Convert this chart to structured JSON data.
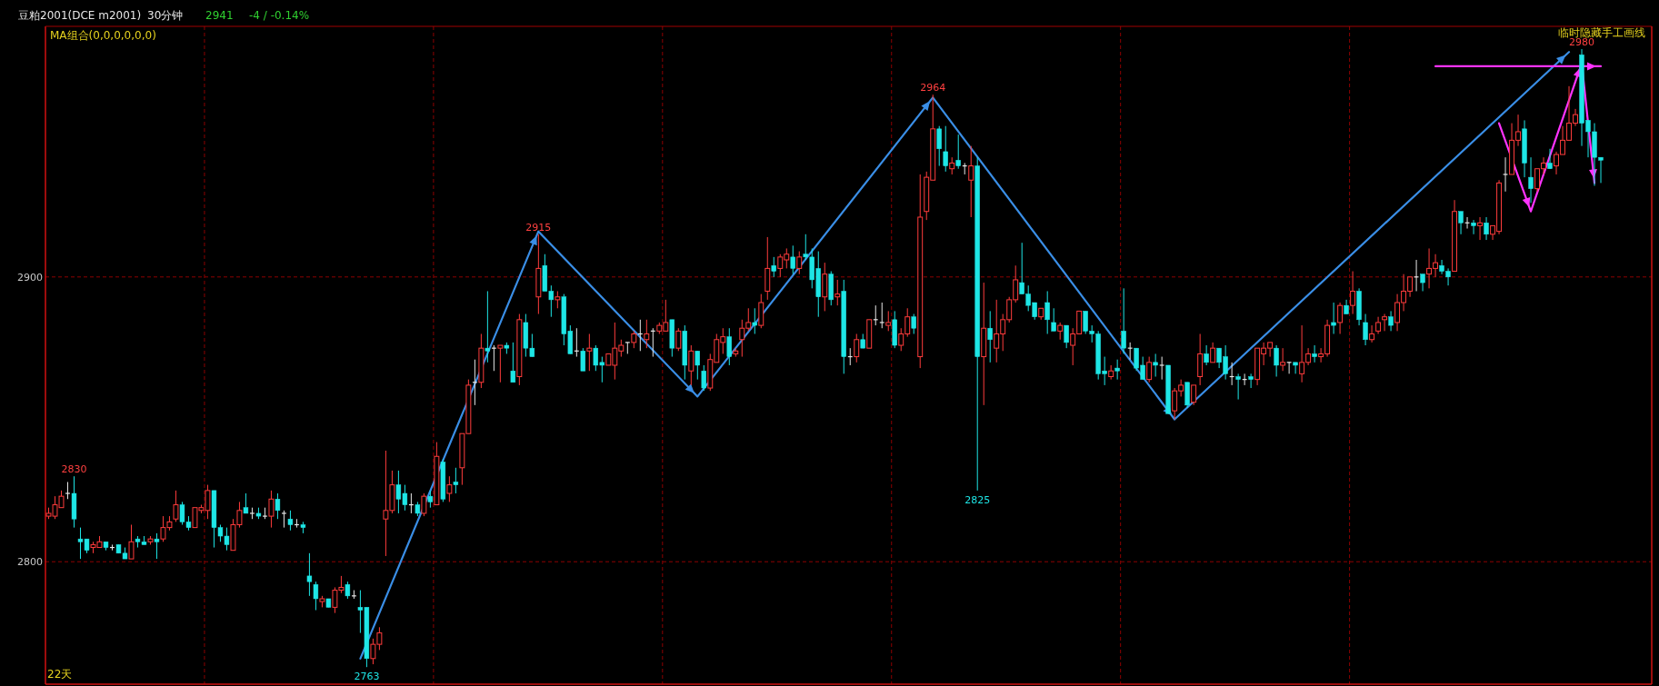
{
  "chart_data": {
    "type": "candlestick",
    "title": "豆粕2001(DCE m2001)",
    "subtitle": "30分钟",
    "annotations": [
      "2941",
      "-4 / -0.14%",
      "MA组合(0,0,0,0,0,0)",
      "临时隐藏手工画线",
      "22天",
      {
        "text": "2830",
        "y": 2830
      },
      {
        "text": "2763",
        "y": 2763
      },
      {
        "text": "2915",
        "y": 2915
      },
      {
        "text": "2964",
        "y": 2964
      },
      {
        "text": "2825",
        "y": 2825
      },
      {
        "text": "2980",
        "y": 2980
      }
    ],
    "categories": [
      null,
      null,
      null,
      null,
      null,
      null,
      null,
      null,
      null,
      null,
      null,
      null,
      null,
      null,
      null,
      null,
      null,
      null,
      null,
      null,
      null,
      null,
      null,
      null,
      null,
      null,
      null,
      null,
      null,
      null,
      null,
      null,
      null,
      null,
      null,
      null,
      null,
      null,
      null,
      null,
      null,
      null,
      null,
      null,
      null,
      null,
      null,
      null,
      null,
      null,
      null,
      null,
      null,
      null,
      null,
      null,
      null,
      null,
      null,
      null,
      null,
      null,
      null,
      null,
      null,
      null,
      null,
      null,
      null,
      null,
      null,
      null,
      null,
      null,
      null,
      null,
      null,
      null,
      null,
      null,
      null,
      null,
      null,
      null,
      null,
      null,
      null,
      null,
      null,
      null,
      null,
      null,
      null,
      null,
      null,
      null,
      null,
      null,
      null,
      null,
      null,
      null,
      null,
      null,
      null,
      null,
      null,
      null,
      null,
      null,
      null,
      null,
      null,
      null,
      null,
      null,
      null,
      null,
      null,
      null,
      null,
      null,
      null,
      null,
      null,
      null,
      null,
      null,
      null,
      null,
      null,
      null,
      null,
      null,
      null,
      null,
      null,
      null,
      null,
      null,
      null,
      null,
      null,
      null,
      null,
      null,
      null,
      null,
      null,
      null,
      null,
      null,
      null,
      null,
      null,
      null,
      null,
      null,
      null,
      null,
      null,
      null,
      null,
      null,
      null,
      null,
      null,
      null,
      null,
      null,
      null,
      null,
      null,
      null,
      null,
      null,
      null,
      null,
      null,
      null,
      null,
      null,
      null,
      null,
      null,
      null,
      null,
      null,
      null,
      null,
      null,
      null,
      null,
      null,
      null,
      null,
      null,
      null,
      null,
      null,
      null,
      null,
      null,
      null,
      null,
      null,
      null,
      null,
      null,
      null,
      null,
      null,
      null,
      null,
      null,
      null,
      null,
      null,
      null,
      null,
      null,
      null,
      null,
      null,
      null,
      null,
      null,
      null,
      null,
      null,
      null,
      null,
      null,
      null,
      null,
      null,
      null,
      null,
      null,
      null,
      null,
      null,
      null,
      null,
      null
    ],
    "ohlc": [
      [
        2816,
        2819,
        2815,
        2817
      ],
      [
        2816,
        2823,
        2815,
        2820
      ],
      [
        2819,
        2825,
        2819,
        2823
      ],
      [
        2824,
        2828,
        2822,
        2824
      ],
      [
        2824,
        2830,
        2812,
        2815
      ],
      [
        2808,
        2812,
        2801,
        2807
      ],
      [
        2808,
        2808,
        2803,
        2804
      ],
      [
        2805,
        2807,
        2803,
        2806
      ],
      [
        2805,
        2809,
        2805,
        2807
      ],
      [
        2807,
        2807,
        2804,
        2805
      ],
      [
        2805,
        2806,
        2804,
        2805
      ],
      [
        2806,
        2806,
        2803,
        2803
      ],
      [
        2803,
        2805,
        2801,
        2801
      ],
      [
        2801,
        2813,
        2801,
        2807
      ],
      [
        2808,
        2809,
        2805,
        2807
      ],
      [
        2807,
        2809,
        2806,
        2806
      ],
      [
        2807,
        2809,
        2806,
        2808
      ],
      [
        2808,
        2810,
        2801,
        2807
      ],
      [
        2808,
        2816,
        2807,
        2812
      ],
      [
        2812,
        2816,
        2811,
        2814
      ],
      [
        2815,
        2825,
        2814,
        2820
      ],
      [
        2820,
        2821,
        2813,
        2814
      ],
      [
        2814,
        2816,
        2811,
        2812
      ],
      [
        2812,
        2819,
        2812,
        2819
      ],
      [
        2818,
        2820,
        2817,
        2819
      ],
      [
        2818,
        2827,
        2815,
        2825
      ],
      [
        2825,
        2825,
        2805,
        2812
      ],
      [
        2812,
        2813,
        2807,
        2809
      ],
      [
        2809,
        2812,
        2804,
        2806
      ],
      [
        2804,
        2815,
        2804,
        2813
      ],
      [
        2813,
        2821,
        2812,
        2818
      ],
      [
        2819,
        2824,
        2817,
        2817
      ],
      [
        2817,
        2819,
        2815,
        2817
      ],
      [
        2817,
        2819,
        2815,
        2816
      ],
      [
        2816,
        2819,
        2815,
        2816
      ],
      [
        2816,
        2825,
        2812,
        2822
      ],
      [
        2822,
        2824,
        2815,
        2818
      ],
      [
        2817,
        2818,
        2812,
        2817
      ],
      [
        2815,
        2818,
        2811,
        2813
      ],
      [
        2813,
        2815,
        2812,
        2813
      ],
      [
        2813,
        2814,
        2810,
        2812
      ],
      [
        2795,
        2803,
        2788,
        2793
      ],
      [
        2792,
        2793,
        2783,
        2787
      ],
      [
        2786,
        2788,
        2784,
        2787
      ],
      [
        2787,
        2787,
        2784,
        2784
      ],
      [
        2784,
        2791,
        2782,
        2790
      ],
      [
        2790,
        2795,
        2789,
        2791
      ],
      [
        2792,
        2793,
        2787,
        2788
      ],
      [
        2788,
        2790,
        2787,
        2788
      ],
      [
        2784,
        2790,
        2775,
        2783
      ],
      [
        2784,
        2784,
        2763,
        2766
      ],
      [
        2766,
        2773,
        2764,
        2771
      ],
      [
        2771,
        2777,
        2769,
        2775
      ],
      [
        2815,
        2839,
        2802,
        2818
      ],
      [
        2818,
        2832,
        2817,
        2827
      ],
      [
        2827,
        2832,
        2817,
        2822
      ],
      [
        2824,
        2827,
        2818,
        2820
      ],
      [
        2820,
        2824,
        2817,
        2820
      ],
      [
        2820,
        2821,
        2816,
        2817
      ],
      [
        2817,
        2824,
        2816,
        2823
      ],
      [
        2823,
        2825,
        2819,
        2821
      ],
      [
        2820,
        2842,
        2820,
        2837
      ],
      [
        2835,
        2836,
        2821,
        2822
      ],
      [
        2824,
        2830,
        2821,
        2827
      ],
      [
        2828,
        2833,
        2824,
        2827
      ],
      [
        2833,
        2845,
        2827,
        2845
      ],
      [
        2845,
        2864,
        2845,
        2862
      ],
      [
        2863,
        2871,
        2855,
        2863
      ],
      [
        2863,
        2880,
        2861,
        2875
      ],
      [
        2875,
        2895,
        2870,
        2874
      ],
      [
        2875,
        2876,
        2867,
        2875
      ],
      [
        2875,
        2876,
        2863,
        2876
      ],
      [
        2876,
        2877,
        2873,
        2875
      ],
      [
        2867,
        2877,
        2863,
        2863
      ],
      [
        2865,
        2887,
        2862,
        2885
      ],
      [
        2884,
        2887,
        2872,
        2875
      ],
      [
        2875,
        2880,
        2872,
        2872
      ],
      [
        2893,
        2915,
        2887,
        2903
      ],
      [
        2904,
        2908,
        2895,
        2895
      ],
      [
        2895,
        2897,
        2886,
        2892
      ],
      [
        2892,
        2895,
        2889,
        2893
      ],
      [
        2893,
        2894,
        2876,
        2880
      ],
      [
        2881,
        2883,
        2873,
        2873
      ],
      [
        2874,
        2882,
        2872,
        2874
      ],
      [
        2874,
        2875,
        2867,
        2867
      ],
      [
        2874,
        2880,
        2867,
        2875
      ],
      [
        2875,
        2876,
        2867,
        2869
      ],
      [
        2870,
        2872,
        2863,
        2869
      ],
      [
        2869,
        2873,
        2869,
        2873
      ],
      [
        2869,
        2884,
        2864,
        2875
      ],
      [
        2874,
        2878,
        2872,
        2876
      ],
      [
        2877,
        2877,
        2873,
        2877
      ],
      [
        2877,
        2881,
        2875,
        2880
      ],
      [
        2880,
        2885,
        2874,
        2880
      ],
      [
        2878,
        2885,
        2875,
        2880
      ],
      [
        2881,
        2882,
        2872,
        2881
      ],
      [
        2881,
        2884,
        2880,
        2883
      ],
      [
        2881,
        2892,
        2881,
        2884
      ],
      [
        2885,
        2885,
        2872,
        2875
      ],
      [
        2875,
        2882,
        2874,
        2881
      ],
      [
        2881,
        2883,
        2864,
        2869
      ],
      [
        2867,
        2876,
        2862,
        2874
      ],
      [
        2874,
        2874,
        2864,
        2869
      ],
      [
        2867,
        2869,
        2860,
        2861
      ],
      [
        2861,
        2873,
        2860,
        2871
      ],
      [
        2870,
        2880,
        2870,
        2878
      ],
      [
        2877,
        2882,
        2873,
        2879
      ],
      [
        2879,
        2882,
        2869,
        2872
      ],
      [
        2873,
        2875,
        2872,
        2874
      ],
      [
        2878,
        2885,
        2872,
        2882
      ],
      [
        2882,
        2889,
        2881,
        2884
      ],
      [
        2884,
        2889,
        2880,
        2883
      ],
      [
        2883,
        2894,
        2882,
        2891
      ],
      [
        2895,
        2914,
        2892,
        2903
      ],
      [
        2904,
        2907,
        2900,
        2902
      ],
      [
        2903,
        2908,
        2900,
        2907
      ],
      [
        2906,
        2910,
        2903,
        2908
      ],
      [
        2907,
        2911,
        2901,
        2903
      ],
      [
        2903,
        2909,
        2901,
        2907
      ],
      [
        2908,
        2915,
        2906,
        2907
      ],
      [
        2907,
        2910,
        2896,
        2899
      ],
      [
        2903,
        2909,
        2886,
        2893
      ],
      [
        2893,
        2905,
        2888,
        2901
      ],
      [
        2901,
        2902,
        2890,
        2892
      ],
      [
        2893,
        2899,
        2890,
        2894
      ],
      [
        2895,
        2899,
        2866,
        2872
      ],
      [
        2872,
        2875,
        2869,
        2872
      ],
      [
        2872,
        2880,
        2870,
        2878
      ],
      [
        2878,
        2880,
        2875,
        2875
      ],
      [
        2875,
        2885,
        2875,
        2885
      ],
      [
        2885,
        2890,
        2883,
        2885
      ],
      [
        2884,
        2891,
        2882,
        2884
      ],
      [
        2883,
        2888,
        2881,
        2884
      ],
      [
        2885,
        2888,
        2875,
        2876
      ],
      [
        2876,
        2882,
        2874,
        2880
      ],
      [
        2880,
        2889,
        2879,
        2886
      ],
      [
        2886,
        2887,
        2880,
        2882
      ],
      [
        2872,
        2936,
        2868,
        2921
      ],
      [
        2923,
        2937,
        2920,
        2935
      ],
      [
        2934,
        2964,
        2934,
        2952
      ],
      [
        2952,
        2953,
        2939,
        2945
      ],
      [
        2944,
        2953,
        2937,
        2939
      ],
      [
        2938,
        2942,
        2936,
        2940
      ],
      [
        2941,
        2950,
        2938,
        2939
      ],
      [
        2939,
        2940,
        2936,
        2939
      ],
      [
        2934,
        2946,
        2921,
        2939
      ],
      [
        2939,
        2942,
        2825,
        2872
      ],
      [
        2872,
        2898,
        2855,
        2882
      ],
      [
        2882,
        2888,
        2870,
        2878
      ],
      [
        2875,
        2892,
        2870,
        2880
      ],
      [
        2880,
        2887,
        2874,
        2885
      ],
      [
        2885,
        2893,
        2884,
        2892
      ],
      [
        2892,
        2904,
        2891,
        2899
      ],
      [
        2898,
        2912,
        2894,
        2894
      ],
      [
        2894,
        2897,
        2888,
        2890
      ],
      [
        2891,
        2891,
        2885,
        2886
      ],
      [
        2886,
        2889,
        2885,
        2889
      ],
      [
        2891,
        2895,
        2880,
        2885
      ],
      [
        2884,
        2889,
        2881,
        2881
      ],
      [
        2881,
        2884,
        2878,
        2883
      ],
      [
        2883,
        2883,
        2875,
        2877
      ],
      [
        2876,
        2882,
        2869,
        2880
      ],
      [
        2880,
        2888,
        2880,
        2888
      ],
      [
        2888,
        2888,
        2880,
        2881
      ],
      [
        2881,
        2883,
        2877,
        2880
      ],
      [
        2880,
        2881,
        2864,
        2866
      ],
      [
        2867,
        2872,
        2862,
        2866
      ],
      [
        2865,
        2869,
        2864,
        2867
      ],
      [
        2868,
        2871,
        2864,
        2867
      ],
      [
        2881,
        2896,
        2873,
        2875
      ],
      [
        2875,
        2877,
        2871,
        2875
      ],
      [
        2875,
        2875,
        2867,
        2868
      ],
      [
        2869,
        2872,
        2864,
        2864
      ],
      [
        2864,
        2872,
        2863,
        2870
      ],
      [
        2870,
        2873,
        2865,
        2869
      ],
      [
        2869,
        2872,
        2864,
        2869
      ],
      [
        2869,
        2869,
        2852,
        2852
      ],
      [
        2853,
        2861,
        2850,
        2860
      ],
      [
        2860,
        2864,
        2858,
        2862
      ],
      [
        2863,
        2863,
        2854,
        2855
      ],
      [
        2856,
        2862,
        2855,
        2862
      ],
      [
        2865,
        2880,
        2862,
        2873
      ],
      [
        2873,
        2876,
        2869,
        2870
      ],
      [
        2870,
        2877,
        2870,
        2875
      ],
      [
        2875,
        2875,
        2868,
        2870
      ],
      [
        2872,
        2876,
        2864,
        2866
      ],
      [
        2865,
        2870,
        2862,
        2865
      ],
      [
        2865,
        2866,
        2857,
        2864
      ],
      [
        2864,
        2866,
        2862,
        2864
      ],
      [
        2865,
        2866,
        2861,
        2864
      ],
      [
        2864,
        2875,
        2862,
        2875
      ],
      [
        2873,
        2877,
        2869,
        2875
      ],
      [
        2875,
        2877,
        2872,
        2877
      ],
      [
        2875,
        2876,
        2865,
        2869
      ],
      [
        2869,
        2875,
        2867,
        2870
      ],
      [
        2870,
        2870,
        2866,
        2870
      ],
      [
        2870,
        2870,
        2866,
        2869
      ],
      [
        2866,
        2883,
        2863,
        2870
      ],
      [
        2870,
        2875,
        2869,
        2873
      ],
      [
        2873,
        2876,
        2870,
        2872
      ],
      [
        2872,
        2875,
        2870,
        2873
      ],
      [
        2873,
        2885,
        2872,
        2883
      ],
      [
        2884,
        2891,
        2880,
        2883
      ],
      [
        2884,
        2891,
        2880,
        2890
      ],
      [
        2890,
        2892,
        2887,
        2887
      ],
      [
        2890,
        2902,
        2887,
        2895
      ],
      [
        2895,
        2896,
        2883,
        2885
      ],
      [
        2884,
        2887,
        2876,
        2878
      ],
      [
        2878,
        2883,
        2877,
        2880
      ],
      [
        2881,
        2886,
        2880,
        2884
      ],
      [
        2885,
        2887,
        2881,
        2886
      ],
      [
        2886,
        2888,
        2881,
        2883
      ],
      [
        2884,
        2894,
        2881,
        2891
      ],
      [
        2891,
        2901,
        2888,
        2895
      ],
      [
        2895,
        2900,
        2893,
        2900
      ],
      [
        2900,
        2906,
        2895,
        2900
      ],
      [
        2901,
        2901,
        2895,
        2898
      ],
      [
        2901,
        2910,
        2896,
        2903
      ],
      [
        2903,
        2908,
        2900,
        2905
      ],
      [
        2904,
        2906,
        2901,
        2902
      ],
      [
        2902,
        2903,
        2897,
        2900
      ],
      [
        2902,
        2927,
        2902,
        2923
      ],
      [
        2923,
        2923,
        2915,
        2919
      ],
      [
        2919,
        2921,
        2917,
        2919
      ],
      [
        2919,
        2920,
        2915,
        2918
      ],
      [
        2918,
        2921,
        2913,
        2919
      ],
      [
        2919,
        2921,
        2913,
        2915
      ],
      [
        2915,
        2918,
        2913,
        2918
      ],
      [
        2916,
        2934,
        2915,
        2933
      ],
      [
        2936,
        2942,
        2930,
        2936
      ],
      [
        2936,
        2954,
        2936,
        2948
      ],
      [
        2948,
        2957,
        2946,
        2951
      ],
      [
        2952,
        2955,
        2935,
        2940
      ],
      [
        2935,
        2942,
        2926,
        2931
      ],
      [
        2931,
        2938,
        2930,
        2938
      ],
      [
        2938,
        2942,
        2936,
        2940
      ],
      [
        2940,
        2945,
        2938,
        2938
      ],
      [
        2939,
        2944,
        2936,
        2943
      ],
      [
        2943,
        2953,
        2943,
        2948
      ],
      [
        2948,
        2967,
        2948,
        2954
      ],
      [
        2954,
        2959,
        2953,
        2957
      ],
      [
        2978,
        2980,
        2946,
        2954
      ],
      [
        2955,
        2955,
        2942,
        2951
      ],
      [
        2951,
        2954,
        2932,
        2942
      ],
      [
        2942,
        2942,
        2933,
        2941
      ]
    ],
    "series": [
      {
        "type": "line",
        "color": "#3a8ee6",
        "values": [
          null,
          null,
          null,
          null,
          null,
          null,
          null,
          null,
          null,
          null,
          null,
          null,
          null,
          null,
          null,
          null,
          null,
          null,
          null,
          null,
          null,
          null,
          null,
          null,
          null,
          null,
          null,
          null,
          null,
          null,
          null,
          null,
          null,
          null,
          null,
          null,
          null,
          null,
          null,
          null,
          null,
          null,
          null,
          null,
          null,
          null,
          null,
          null,
          null,
          2766,
          null,
          null,
          null,
          null,
          null,
          null,
          null,
          null,
          null,
          null,
          null,
          null,
          null,
          null,
          null,
          null,
          null,
          null,
          null,
          null,
          null,
          null,
          null,
          null,
          null,
          null,
          null,
          2916,
          null,
          null,
          null,
          null,
          null,
          null,
          null,
          null,
          null,
          null,
          null,
          null,
          null,
          null,
          null,
          null,
          null,
          null,
          null,
          null,
          null,
          null,
          null,
          null,
          2858,
          null,
          null,
          null,
          null,
          null,
          null,
          null,
          null,
          null,
          null,
          null,
          null,
          null,
          null,
          null,
          null,
          null,
          null,
          null,
          null,
          null,
          null,
          null,
          null,
          null,
          null,
          null,
          null,
          null,
          null,
          null,
          null,
          null,
          null,
          null,
          null,
          2963,
          null,
          null,
          null,
          null,
          null,
          null,
          null,
          null,
          null,
          null,
          null,
          null,
          null,
          null,
          null,
          null,
          null,
          null,
          null,
          null,
          null,
          null,
          null,
          null,
          null,
          null,
          null,
          null,
          null,
          null,
          null,
          null,
          null,
          null,
          null,
          null,
          null,
          2850,
          null,
          null,
          null,
          null,
          null,
          null,
          null,
          null,
          null,
          null,
          null,
          null,
          null,
          null,
          null,
          null,
          null,
          null,
          null,
          null,
          null,
          null,
          null,
          null,
          null,
          null,
          null,
          null,
          null,
          null,
          null,
          null,
          null,
          null,
          null,
          null,
          null,
          null,
          null,
          null,
          null,
          null,
          null,
          null,
          null,
          null,
          null,
          null,
          null,
          null,
          null,
          null,
          null,
          null,
          null,
          null,
          null,
          null,
          null,
          null,
          null,
          2979,
          null,
          null,
          null,
          null,
          null
        ]
      },
      {
        "type": "line",
        "color": "#ff33ff",
        "values": [
          null,
          null,
          null,
          null,
          null,
          null,
          null,
          null,
          null,
          null,
          null,
          null,
          null,
          null,
          null,
          null,
          null,
          null,
          null,
          null,
          null,
          null,
          null,
          null,
          null,
          null,
          null,
          null,
          null,
          null,
          null,
          null,
          null,
          null,
          null,
          null,
          null,
          null,
          null,
          null,
          null,
          null,
          null,
          null,
          null,
          null,
          null,
          null,
          null,
          null,
          null,
          null,
          null,
          null,
          null,
          null,
          null,
          null,
          null,
          null,
          null,
          null,
          null,
          null,
          null,
          null,
          null,
          null,
          null,
          null,
          null,
          null,
          null,
          null,
          null,
          null,
          null,
          null,
          null,
          null,
          null,
          null,
          null,
          null,
          null,
          null,
          null,
          null,
          null,
          null,
          null,
          null,
          null,
          null,
          null,
          null,
          null,
          null,
          null,
          null,
          null,
          null,
          null,
          null,
          null,
          null,
          null,
          null,
          null,
          null,
          null,
          null,
          null,
          null,
          null,
          null,
          null,
          null,
          null,
          null,
          null,
          null,
          null,
          null,
          null,
          null,
          null,
          null,
          null,
          null,
          null,
          null,
          null,
          null,
          null,
          null,
          null,
          null,
          null,
          null,
          null,
          null,
          null,
          null,
          null,
          null,
          null,
          null,
          null,
          null,
          null,
          null,
          null,
          null,
          null,
          null,
          null,
          null,
          null,
          null,
          null,
          null,
          null,
          null,
          null,
          null,
          null,
          null,
          null,
          null,
          null,
          null,
          null,
          null,
          null,
          null,
          null,
          null,
          null,
          null,
          null,
          null,
          null,
          null,
          null,
          null,
          null,
          null,
          null,
          null,
          null,
          null,
          null,
          null,
          null,
          null,
          null,
          null,
          null,
          null,
          null,
          null,
          null,
          null,
          null,
          null,
          null,
          null,
          null,
          null,
          null,
          null,
          null,
          null,
          null,
          null,
          null,
          null,
          null,
          null,
          null,
          null,
          null,
          null,
          null,
          null,
          null,
          null,
          2954,
          null,
          null,
          null,
          null,
          2923,
          null,
          null,
          null,
          null,
          null,
          null,
          null,
          2975,
          null,
          2933,
          null
        ]
      },
      {
        "type": "line",
        "color": "#ff33ff",
        "values": [
          null,
          null,
          null,
          null,
          null,
          null,
          null,
          null,
          null,
          null,
          null,
          null,
          null,
          null,
          null,
          null,
          null,
          null,
          null,
          null,
          null,
          null,
          null,
          null,
          null,
          null,
          null,
          null,
          null,
          null,
          null,
          null,
          null,
          null,
          null,
          null,
          null,
          null,
          null,
          null,
          null,
          null,
          null,
          null,
          null,
          null,
          null,
          null,
          null,
          null,
          null,
          null,
          null,
          null,
          null,
          null,
          null,
          null,
          null,
          null,
          null,
          null,
          null,
          null,
          null,
          null,
          null,
          null,
          null,
          null,
          null,
          null,
          null,
          null,
          null,
          null,
          null,
          null,
          null,
          null,
          null,
          null,
          null,
          null,
          null,
          null,
          null,
          null,
          null,
          null,
          null,
          null,
          null,
          null,
          null,
          null,
          null,
          null,
          null,
          null,
          null,
          null,
          null,
          null,
          null,
          null,
          null,
          null,
          null,
          null,
          null,
          null,
          null,
          null,
          null,
          null,
          null,
          null,
          null,
          null,
          null,
          null,
          null,
          null,
          null,
          null,
          null,
          null,
          null,
          null,
          null,
          null,
          null,
          null,
          null,
          null,
          null,
          null,
          null,
          null,
          null,
          null,
          null,
          null,
          null,
          null,
          null,
          null,
          null,
          null,
          null,
          null,
          null,
          null,
          null,
          null,
          null,
          null,
          null,
          null,
          null,
          null,
          null,
          null,
          null,
          null,
          null,
          null,
          null,
          null,
          null,
          null,
          null,
          null,
          null,
          null,
          null,
          null,
          null,
          null,
          null,
          null,
          null,
          null,
          null,
          null,
          null,
          null,
          null,
          null,
          null,
          null,
          null,
          null,
          null,
          null,
          null,
          null,
          null,
          null,
          null,
          null,
          null,
          null,
          null,
          null,
          null,
          null,
          null,
          null,
          null,
          null,
          null,
          null,
          null,
          null,
          null,
          null,
          2974,
          null,
          null,
          null,
          null,
          null,
          null,
          null,
          null,
          null,
          null,
          null,
          null,
          null,
          null,
          null,
          null,
          null,
          null,
          null,
          null,
          null,
          null,
          null,
          null,
          null,
          2974
        ]
      }
    ],
    "ylim": [
      2757,
      2988
    ],
    "yticks": [
      2800,
      2900
    ],
    "grid": true,
    "tick_labels": "y"
  }
}
